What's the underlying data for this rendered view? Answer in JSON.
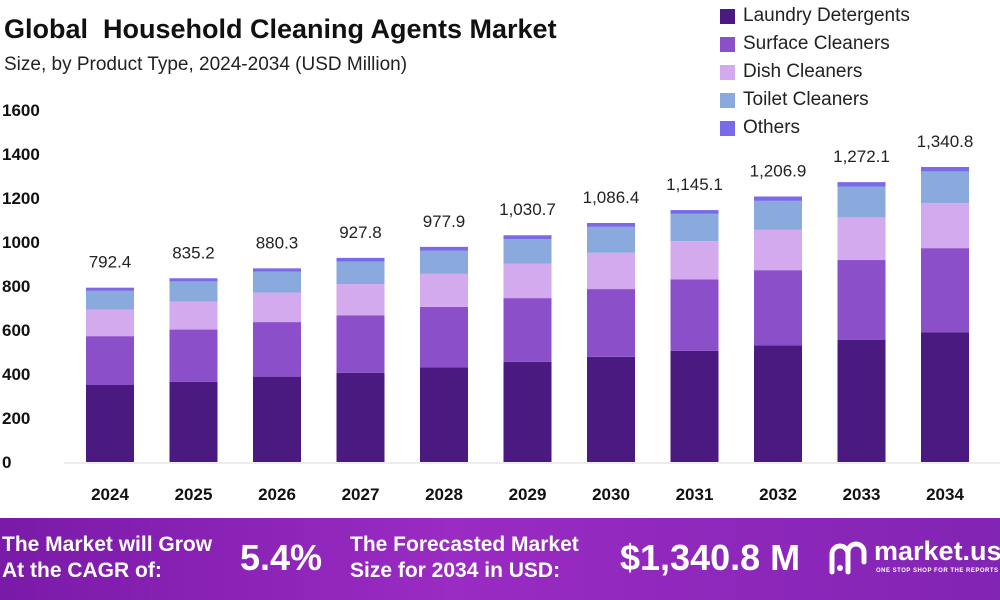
{
  "title": "Global  Household Cleaning Agents Market",
  "subtitle": "Size, by Product Type, 2024-2034 (USD Million)",
  "chart_data": {
    "type": "bar",
    "stacked": true,
    "categories": [
      "2024",
      "2025",
      "2026",
      "2027",
      "2028",
      "2029",
      "2030",
      "2031",
      "2032",
      "2033",
      "2034"
    ],
    "series": [
      {
        "name": "Laundry Detergents",
        "color": "#4a1a80",
        "values": [
          350,
          365,
          388,
          405,
          430,
          455,
          478,
          505,
          530,
          556,
          590
        ]
      },
      {
        "name": "Surface Cleaners",
        "color": "#8a4fc9",
        "values": [
          222,
          237,
          248,
          262,
          275,
          290,
          308,
          325,
          342,
          362,
          382
        ]
      },
      {
        "name": "Dish Cleaners",
        "color": "#d3aaee",
        "values": [
          120,
          127,
          134,
          142,
          150,
          157,
          165,
          174,
          183,
          194,
          204
        ]
      },
      {
        "name": "Toilet Cleaners",
        "color": "#8aaadd",
        "values": [
          86,
          92,
          95,
          102,
          105,
          111,
          118,
          124,
          132,
          140,
          145
        ]
      },
      {
        "name": "Others",
        "color": "#7a6ae8",
        "values": [
          14.4,
          14.2,
          15.3,
          16.8,
          17.9,
          17.7,
          17.4,
          17.1,
          19.9,
          20.1,
          19.8
        ]
      }
    ],
    "totals": [
      "792.4",
      "835.2",
      "880.3",
      "927.8",
      "977.9",
      "1,030.7",
      "1,086.4",
      "1,145.1",
      "1,206.9",
      "1,272.1",
      "1,340.8"
    ],
    "y_ticks": [
      "0",
      "200",
      "400",
      "600",
      "800",
      "1000",
      "1200",
      "1400",
      "1600"
    ],
    "ylim": [
      0,
      1600
    ],
    "grid": false,
    "legend_position": "top-right"
  },
  "footer": {
    "cagr_label_line1": "The Market will Grow",
    "cagr_label_line2": "At the CAGR of:",
    "cagr_value": "5.4%",
    "forecast_label_line1": "The Forecasted Market",
    "forecast_label_line2": "Size for 2034 in USD:",
    "forecast_value": "$1,340.8 M",
    "logo_text": "market.us",
    "logo_tagline": "ONE STOP SHOP FOR THE REPORTS",
    "background_color": "#8a24b8"
  }
}
